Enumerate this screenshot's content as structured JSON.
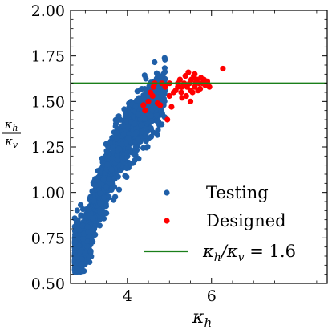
{
  "chart_data": {
    "type": "scatter",
    "xlabel": "κ_h",
    "ylabel": "κ_h / κ_v",
    "xlim": [
      2.65,
      8.75
    ],
    "ylim": [
      0.5,
      2.0
    ],
    "x_ticks": [
      {
        "value": 4,
        "label": "4"
      },
      {
        "value": 6,
        "label": "6"
      }
    ],
    "y_ticks": [
      {
        "value": 0.5,
        "label": "0.50"
      },
      {
        "value": 0.75,
        "label": "0.75"
      },
      {
        "value": 1.0,
        "label": "1.00"
      },
      {
        "value": 1.25,
        "label": "1.25"
      },
      {
        "value": 1.5,
        "label": "1.50"
      },
      {
        "value": 1.75,
        "label": "1.75"
      },
      {
        "value": 2.0,
        "label": "2.00"
      }
    ],
    "legend_placement": "lower-right",
    "series": [
      {
        "name": "Testing",
        "color": "#1f5fa8",
        "distribution": {
          "count": 1600,
          "x_start": 2.75,
          "x_end": 4.9,
          "trend": [
            [
              2.75,
              0.65
            ],
            [
              3.0,
              0.72
            ],
            [
              3.25,
              0.92
            ],
            [
              3.5,
              1.08
            ],
            [
              3.75,
              1.22
            ],
            [
              4.0,
              1.31
            ],
            [
              4.25,
              1.38
            ],
            [
              4.5,
              1.46
            ],
            [
              4.75,
              1.52
            ],
            [
              4.9,
              1.58
            ]
          ],
          "spread": 0.17
        }
      },
      {
        "name": "Designed",
        "color": "#ff0000",
        "points": [
          [
            4.38,
            1.48
          ],
          [
            4.42,
            1.45
          ],
          [
            4.5,
            1.5
          ],
          [
            4.55,
            1.55
          ],
          [
            4.6,
            1.53
          ],
          [
            4.62,
            1.58
          ],
          [
            4.65,
            1.6
          ],
          [
            4.72,
            1.49
          ],
          [
            4.78,
            1.48
          ],
          [
            4.82,
            1.6
          ],
          [
            4.9,
            1.58
          ],
          [
            4.95,
            1.4
          ],
          [
            5.0,
            1.6
          ],
          [
            5.05,
            1.47
          ],
          [
            5.1,
            1.55
          ],
          [
            5.15,
            1.56
          ],
          [
            5.2,
            1.58
          ],
          [
            5.25,
            1.62
          ],
          [
            5.28,
            1.55
          ],
          [
            5.3,
            1.58
          ],
          [
            5.35,
            1.6
          ],
          [
            5.38,
            1.64
          ],
          [
            5.42,
            1.58
          ],
          [
            5.45,
            1.66
          ],
          [
            5.48,
            1.6
          ],
          [
            5.5,
            1.56
          ],
          [
            5.52,
            1.62
          ],
          [
            5.55,
            1.55
          ],
          [
            5.58,
            1.64
          ],
          [
            5.6,
            1.58
          ],
          [
            5.62,
            1.6
          ],
          [
            5.65,
            1.62
          ],
          [
            5.68,
            1.56
          ],
          [
            5.7,
            1.6
          ],
          [
            5.73,
            1.57
          ],
          [
            5.75,
            1.63
          ],
          [
            5.78,
            1.6
          ],
          [
            5.82,
            1.62
          ],
          [
            5.85,
            1.59
          ],
          [
            5.9,
            1.61
          ],
          [
            5.95,
            1.58
          ],
          [
            6.27,
            1.68
          ],
          [
            5.4,
            1.53
          ],
          [
            5.5,
            1.5
          ],
          [
            5.0,
            1.53
          ],
          [
            5.3,
            1.52
          ],
          [
            5.6,
            1.65
          ],
          [
            5.2,
            1.6
          ]
        ]
      },
      {
        "name": "κ_h/κ_v = 1.6",
        "type": "hline",
        "y": 1.6,
        "color": "#1a7f1a"
      }
    ]
  }
}
